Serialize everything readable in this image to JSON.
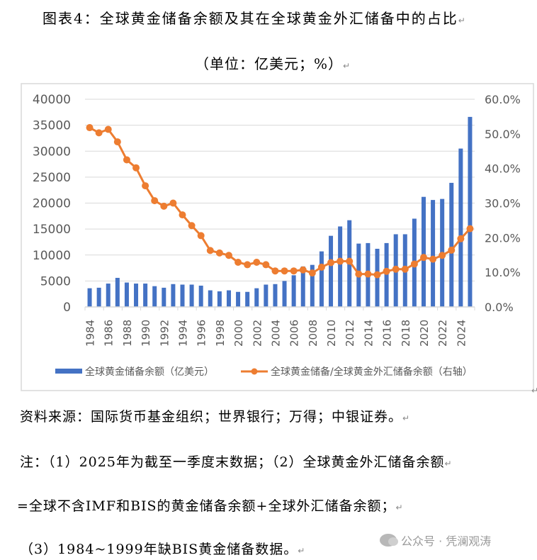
{
  "title": "图表4：全球黄金储备余额及其在全球黄金外汇储备中的占比",
  "unit": "（单位：亿美元；%）",
  "paragraph_mark": "↵",
  "source": "资料来源：国际货币基金组织；世界银行；万得；中银证券。",
  "notes": [
    "注：（1）2025年为截至一季度末数据；（2）全球黄金外汇储备余额",
    "=全球不含IMF和BIS的黄金储备余额+全球外汇储备余额；",
    "（3）1984~1999年缺BIS黄金储备数据。"
  ],
  "watermark": "公众号 · 凭澜观涛",
  "colors": {
    "bar": "#4472C4",
    "line": "#ED7D31",
    "grid": "#D9D9D9",
    "axis_text": "#595959"
  },
  "chart_data": {
    "type": "bar+line",
    "title": "",
    "categories": [
      1984,
      1985,
      1986,
      1987,
      1988,
      1989,
      1990,
      1991,
      1992,
      1993,
      1994,
      1995,
      1996,
      1997,
      1998,
      1999,
      2000,
      2001,
      2002,
      2003,
      2004,
      2005,
      2006,
      2007,
      2008,
      2009,
      2010,
      2011,
      2012,
      2013,
      2014,
      2015,
      2016,
      2017,
      2018,
      2019,
      2020,
      2021,
      2022,
      2023,
      2024,
      2025
    ],
    "x_tick_labels": [
      "1984",
      "1986",
      "1988",
      "1990",
      "1992",
      "1994",
      "1996",
      "1998",
      "2000",
      "2002",
      "2004",
      "2006",
      "2008",
      "2010",
      "2012",
      "2014",
      "2016",
      "2018",
      "2020",
      "2022",
      "2024"
    ],
    "series": [
      {
        "name": "全球黄金储备余额（亿美元）",
        "type": "bar",
        "axis": "left",
        "values": [
          3600,
          3700,
          4500,
          5600,
          4700,
          4500,
          4500,
          4000,
          3700,
          4400,
          4300,
          4300,
          4100,
          3200,
          3000,
          3200,
          2900,
          2900,
          3600,
          4300,
          4400,
          5000,
          6100,
          7800,
          8100,
          10700,
          13700,
          15500,
          16700,
          12200,
          12300,
          11200,
          12300,
          14000,
          14000,
          17000,
          21200,
          20600,
          20800,
          23900,
          30500,
          36600
        ]
      },
      {
        "name": "全球黄金储备/全球黄金外汇储备余额（右轴）",
        "type": "line",
        "axis": "right",
        "values": [
          51.8,
          50.3,
          51.3,
          47.7,
          42.5,
          40.2,
          35.0,
          30.7,
          29.1,
          30.0,
          26.6,
          23.5,
          20.6,
          16.3,
          15.6,
          14.9,
          12.9,
          12.2,
          12.9,
          12.2,
          10.4,
          10.4,
          10.4,
          10.7,
          9.8,
          11.5,
          12.8,
          13.2,
          13.2,
          9.5,
          9.5,
          9.3,
          10.3,
          10.9,
          10.9,
          12.4,
          14.3,
          13.8,
          14.9,
          16.4,
          19.7,
          22.6
        ]
      }
    ],
    "y_left": {
      "lim": [
        0,
        40000
      ],
      "ticks": [
        "0",
        "5000",
        "10000",
        "15000",
        "20000",
        "25000",
        "30000",
        "35000",
        "40000"
      ]
    },
    "y_right": {
      "lim": [
        0,
        60
      ],
      "ticks": [
        "0.0%",
        "10.0%",
        "20.0%",
        "30.0%",
        "40.0%",
        "50.0%",
        "60.0%"
      ]
    },
    "grid": true,
    "legend": "bottom"
  }
}
